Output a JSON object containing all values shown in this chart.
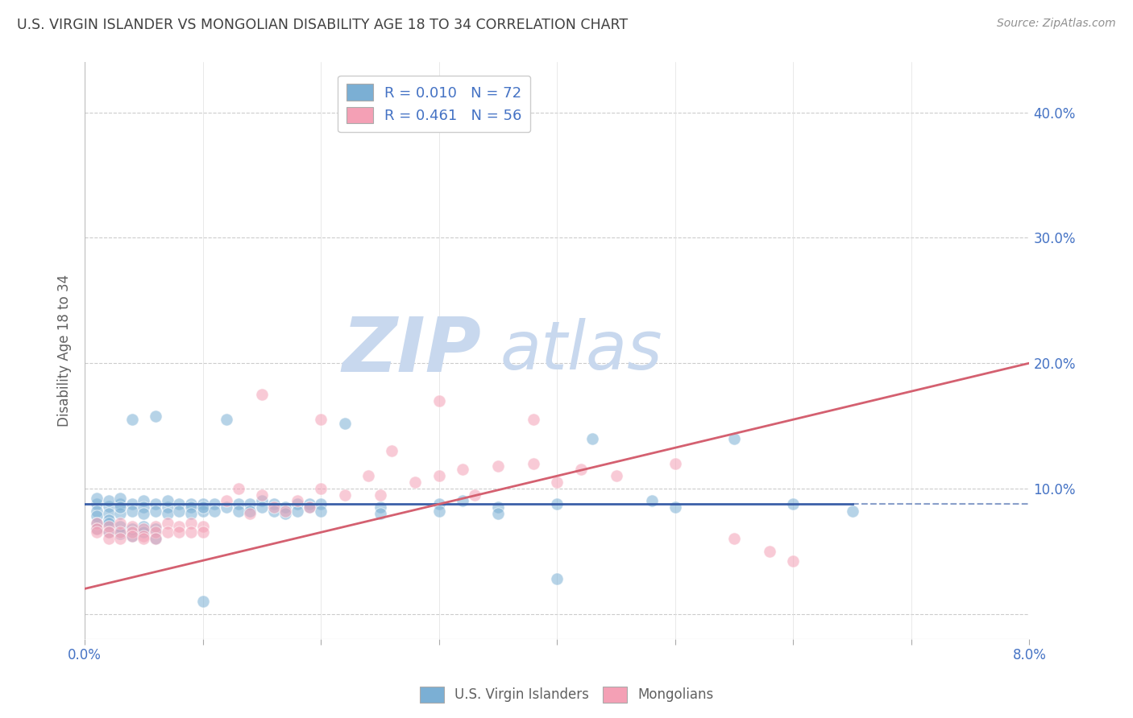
{
  "title": "U.S. VIRGIN ISLANDER VS MONGOLIAN DISABILITY AGE 18 TO 34 CORRELATION CHART",
  "source": "Source: ZipAtlas.com",
  "ylabel": "Disability Age 18 to 34",
  "xlim": [
    0.0,
    0.08
  ],
  "ylim": [
    -0.02,
    0.44
  ],
  "yticks": [
    0.0,
    0.1,
    0.2,
    0.3,
    0.4
  ],
  "ytick_labels": [
    "",
    "10.0%",
    "20.0%",
    "30.0%",
    "40.0%"
  ],
  "xticks": [
    0.0,
    0.01,
    0.02,
    0.03,
    0.04,
    0.05,
    0.06,
    0.07,
    0.08
  ],
  "xtick_labels": [
    "0.0%",
    "",
    "",
    "",
    "",
    "",
    "",
    "",
    "8.0%"
  ],
  "watermark_zip": "ZIP",
  "watermark_atlas": "atlas",
  "blue_color": "#7BAFD4",
  "pink_color": "#F4A0B5",
  "blue_scatter": [
    [
      0.001,
      0.088
    ],
    [
      0.001,
      0.092
    ],
    [
      0.001,
      0.082
    ],
    [
      0.001,
      0.078
    ],
    [
      0.002,
      0.086
    ],
    [
      0.002,
      0.09
    ],
    [
      0.002,
      0.08
    ],
    [
      0.002,
      0.075
    ],
    [
      0.003,
      0.088
    ],
    [
      0.003,
      0.092
    ],
    [
      0.003,
      0.08
    ],
    [
      0.003,
      0.085
    ],
    [
      0.004,
      0.088
    ],
    [
      0.004,
      0.082
    ],
    [
      0.004,
      0.155
    ],
    [
      0.005,
      0.09
    ],
    [
      0.005,
      0.085
    ],
    [
      0.005,
      0.08
    ],
    [
      0.006,
      0.088
    ],
    [
      0.006,
      0.082
    ],
    [
      0.006,
      0.158
    ],
    [
      0.007,
      0.085
    ],
    [
      0.007,
      0.09
    ],
    [
      0.007,
      0.08
    ],
    [
      0.008,
      0.088
    ],
    [
      0.008,
      0.082
    ],
    [
      0.009,
      0.088
    ],
    [
      0.009,
      0.085
    ],
    [
      0.009,
      0.08
    ],
    [
      0.01,
      0.088
    ],
    [
      0.01,
      0.082
    ],
    [
      0.01,
      0.085
    ],
    [
      0.011,
      0.088
    ],
    [
      0.011,
      0.082
    ],
    [
      0.012,
      0.085
    ],
    [
      0.012,
      0.155
    ],
    [
      0.013,
      0.088
    ],
    [
      0.013,
      0.082
    ],
    [
      0.014,
      0.088
    ],
    [
      0.014,
      0.082
    ],
    [
      0.015,
      0.09
    ],
    [
      0.015,
      0.085
    ],
    [
      0.016,
      0.088
    ],
    [
      0.016,
      0.082
    ],
    [
      0.017,
      0.085
    ],
    [
      0.017,
      0.08
    ],
    [
      0.018,
      0.088
    ],
    [
      0.018,
      0.082
    ],
    [
      0.019,
      0.088
    ],
    [
      0.019,
      0.085
    ],
    [
      0.02,
      0.088
    ],
    [
      0.02,
      0.082
    ],
    [
      0.022,
      0.152
    ],
    [
      0.025,
      0.085
    ],
    [
      0.025,
      0.08
    ],
    [
      0.03,
      0.088
    ],
    [
      0.03,
      0.082
    ],
    [
      0.032,
      0.09
    ],
    [
      0.035,
      0.085
    ],
    [
      0.035,
      0.08
    ],
    [
      0.04,
      0.088
    ],
    [
      0.043,
      0.14
    ],
    [
      0.048,
      0.09
    ],
    [
      0.05,
      0.085
    ],
    [
      0.055,
      0.14
    ],
    [
      0.06,
      0.088
    ],
    [
      0.065,
      0.082
    ],
    [
      0.001,
      0.072
    ],
    [
      0.001,
      0.068
    ],
    [
      0.002,
      0.072
    ],
    [
      0.002,
      0.065
    ],
    [
      0.003,
      0.07
    ],
    [
      0.003,
      0.064
    ],
    [
      0.004,
      0.068
    ],
    [
      0.004,
      0.062
    ],
    [
      0.005,
      0.07
    ],
    [
      0.005,
      0.065
    ],
    [
      0.006,
      0.068
    ],
    [
      0.006,
      0.06
    ],
    [
      0.01,
      0.01
    ],
    [
      0.04,
      0.028
    ]
  ],
  "pink_scatter": [
    [
      0.001,
      0.072
    ],
    [
      0.001,
      0.068
    ],
    [
      0.001,
      0.065
    ],
    [
      0.002,
      0.07
    ],
    [
      0.002,
      0.065
    ],
    [
      0.002,
      0.06
    ],
    [
      0.003,
      0.072
    ],
    [
      0.003,
      0.065
    ],
    [
      0.003,
      0.06
    ],
    [
      0.004,
      0.07
    ],
    [
      0.004,
      0.065
    ],
    [
      0.004,
      0.062
    ],
    [
      0.005,
      0.068
    ],
    [
      0.005,
      0.062
    ],
    [
      0.005,
      0.06
    ],
    [
      0.006,
      0.07
    ],
    [
      0.006,
      0.065
    ],
    [
      0.006,
      0.06
    ],
    [
      0.007,
      0.072
    ],
    [
      0.007,
      0.065
    ],
    [
      0.008,
      0.07
    ],
    [
      0.008,
      0.065
    ],
    [
      0.009,
      0.072
    ],
    [
      0.009,
      0.065
    ],
    [
      0.01,
      0.07
    ],
    [
      0.01,
      0.065
    ],
    [
      0.012,
      0.09
    ],
    [
      0.013,
      0.1
    ],
    [
      0.014,
      0.08
    ],
    [
      0.015,
      0.095
    ],
    [
      0.016,
      0.085
    ],
    [
      0.017,
      0.082
    ],
    [
      0.018,
      0.09
    ],
    [
      0.019,
      0.085
    ],
    [
      0.02,
      0.1
    ],
    [
      0.022,
      0.095
    ],
    [
      0.024,
      0.11
    ],
    [
      0.025,
      0.095
    ],
    [
      0.026,
      0.13
    ],
    [
      0.028,
      0.105
    ],
    [
      0.03,
      0.11
    ],
    [
      0.032,
      0.115
    ],
    [
      0.033,
      0.095
    ],
    [
      0.035,
      0.118
    ],
    [
      0.038,
      0.12
    ],
    [
      0.04,
      0.105
    ],
    [
      0.042,
      0.115
    ],
    [
      0.045,
      0.11
    ],
    [
      0.05,
      0.12
    ],
    [
      0.015,
      0.175
    ],
    [
      0.02,
      0.155
    ],
    [
      0.03,
      0.17
    ],
    [
      0.038,
      0.155
    ],
    [
      0.055,
      0.06
    ],
    [
      0.058,
      0.05
    ],
    [
      0.06,
      0.042
    ]
  ],
  "blue_line_color": "#3A5FA8",
  "pink_line_color": "#D46070",
  "blue_line": {
    "x0": 0.0,
    "x1": 0.065,
    "y0": 0.088,
    "y1": 0.088
  },
  "pink_line": {
    "x0": 0.0,
    "x1": 0.08,
    "y0": 0.02,
    "y1": 0.2
  },
  "blue_line_dash_start": 0.065,
  "grid_color": "#CCCCCC",
  "background_color": "#FFFFFF",
  "title_color": "#404040",
  "axis_label_color": "#606060",
  "tick_label_color": "#4472C4",
  "watermark_color": "#C8D8EE"
}
